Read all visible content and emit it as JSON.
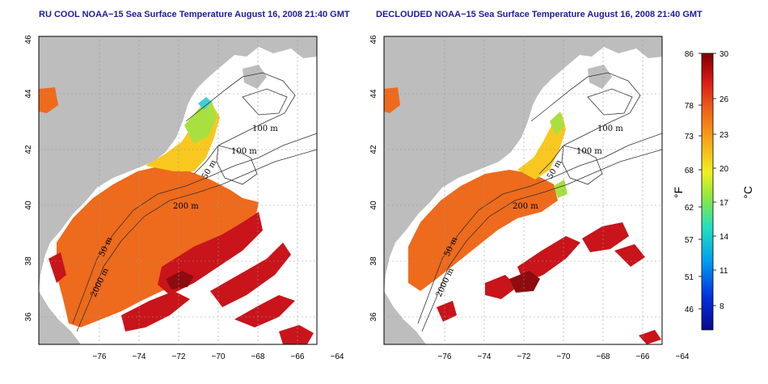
{
  "titles": {
    "left": "RU COOL NOAA−15 Sea Surface Temperature August 16, 2008 21:40 GMT",
    "right": "DECLOUDED NOAA−15 Sea Surface Temperature August 16, 2008 21:40 GMT"
  },
  "axes": {
    "lon_ticks": [
      "−76",
      "−74",
      "−72",
      "−70",
      "−68",
      "−66",
      "−64"
    ],
    "lat_ticks": [
      "36",
      "38",
      "40",
      "42",
      "44",
      "46"
    ]
  },
  "contours": {
    "left": [
      "100 m",
      "100 m",
      "50 m",
      "200 m",
      "50 m",
      "2000 m"
    ],
    "right": [
      "100 m",
      "100 m",
      "50 m",
      "200 m",
      "50 m",
      "2000 m"
    ]
  },
  "colorbar": {
    "fahrenheit": [
      "86",
      "78",
      "73",
      "68",
      "62",
      "57",
      "51",
      "46"
    ],
    "celsius": [
      "30",
      "26",
      "23",
      "20",
      "17",
      "14",
      "11",
      "8"
    ],
    "unit_f": "°F",
    "unit_c": "°C"
  },
  "colors": {
    "land": "#bdbdbd",
    "cloud": "#ffffff",
    "title": "#1c1c9c",
    "warm": "#ee6a1c",
    "hot": "#c8141a",
    "mid": "#f8c820",
    "cool": "#a8e040"
  }
}
